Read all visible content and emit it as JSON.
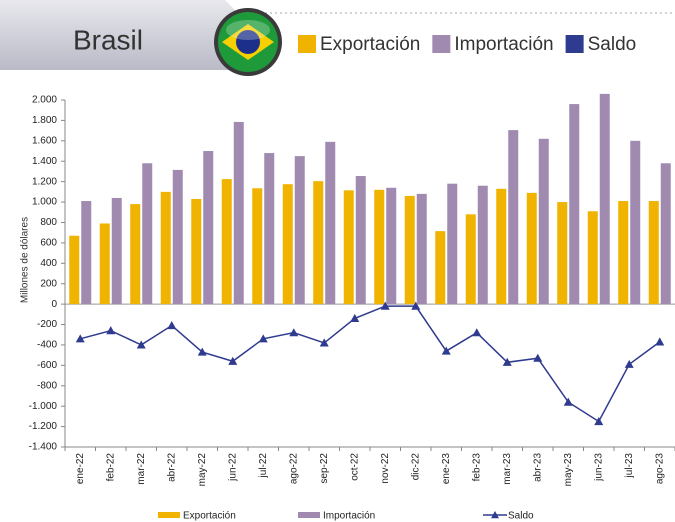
{
  "chart_data": {
    "type": "bar-line",
    "title": "Brasil",
    "y_label": "Millones de dólares",
    "categories": [
      "ene-22",
      "feb-22",
      "mar-22",
      "abr-22",
      "may-22",
      "jun-22",
      "jul-22",
      "ago-22",
      "sep-22",
      "oct-22",
      "nov-22",
      "dic-22",
      "ene-23",
      "feb-23",
      "mar-23",
      "abr-23",
      "may-23",
      "jun-23",
      "jul-23",
      "ago-23"
    ],
    "series": [
      {
        "name": "Exportación",
        "type": "bar",
        "color": "#f0b400",
        "values": [
          670,
          790,
          980,
          1100,
          1030,
          1225,
          1135,
          1175,
          1205,
          1115,
          1120,
          1060,
          715,
          880,
          1130,
          1090,
          1000,
          910,
          1010,
          1010
        ]
      },
      {
        "name": "Importación",
        "type": "bar",
        "color": "#a08ab0",
        "values": [
          1010,
          1040,
          1380,
          1315,
          1500,
          1785,
          1480,
          1450,
          1590,
          1255,
          1140,
          1080,
          1180,
          1160,
          1705,
          1620,
          1960,
          2060,
          1600,
          1380
        ]
      },
      {
        "name": "Saldo",
        "type": "line",
        "color": "#2f3b8f",
        "values": [
          -340,
          -260,
          -400,
          -210,
          -470,
          -560,
          -340,
          -280,
          -380,
          -140,
          -20,
          -20,
          -460,
          -280,
          -570,
          -530,
          -960,
          -1150,
          -590,
          -370
        ]
      }
    ],
    "ylim": [
      -1400,
      2000
    ],
    "yticks": [
      {
        "value": -1400,
        "label": "-1.400"
      },
      {
        "value": -1200,
        "label": "-1.200"
      },
      {
        "value": -1000,
        "label": "-1.000"
      },
      {
        "value": -800,
        "label": "-800"
      },
      {
        "value": -600,
        "label": "-600"
      },
      {
        "value": -400,
        "label": "-400"
      },
      {
        "value": -200,
        "label": "-200"
      },
      0,
      200,
      400,
      600,
      800,
      {
        "value": 1000,
        "label": "1.000"
      },
      {
        "value": 1200,
        "label": "1.200"
      },
      {
        "value": 1400,
        "label": "1.400"
      },
      {
        "value": 1600,
        "label": "1.600"
      },
      {
        "value": 1800,
        "label": "1.800"
      },
      {
        "value": 2000,
        "label": "2.000"
      }
    ]
  }
}
